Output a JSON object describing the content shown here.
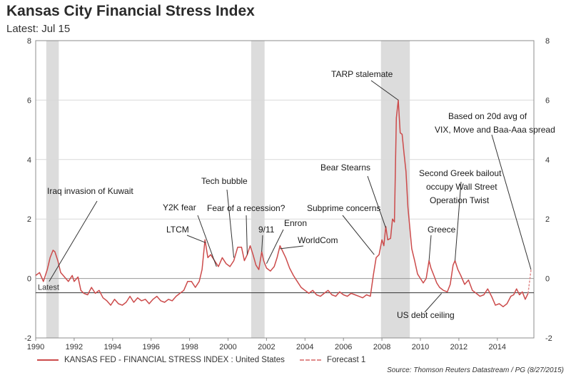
{
  "header": {
    "title": "Kansas City Financial Stress Index",
    "subtitle": "Latest: Jul 15"
  },
  "footer": {
    "source": "Source: Thomson Reuters Datastream / PG (8/27/2015)"
  },
  "chart_data": {
    "type": "line",
    "title": "Kansas City Financial Stress Index",
    "subtitle": "Latest: Jul 15",
    "xlim": [
      1990,
      2015.9
    ],
    "ylim": [
      -2,
      8
    ],
    "x_ticks": [
      "1990",
      "1992",
      "1994",
      "1996",
      "1998",
      "2000",
      "2002",
      "2004",
      "2006",
      "2008",
      "2010",
      "2012",
      "2014"
    ],
    "y_ticks_left": [
      "-2",
      "0",
      "2",
      "4",
      "6",
      "8"
    ],
    "y_ticks_right": [
      "-2",
      "0",
      "2",
      "4",
      "6",
      "8"
    ],
    "grid": "horizontal",
    "latest_line": {
      "label": "Latest",
      "value": -0.48
    },
    "recession_shading": [
      [
        1990.55,
        1991.2
      ],
      [
        2001.2,
        2001.9
      ],
      [
        2007.95,
        2009.45
      ]
    ],
    "series": [
      {
        "name": "KANSAS FED - FINANCIAL STRESS INDEX : United States",
        "color": "#cc4b4b",
        "style": "solid",
        "points": [
          [
            1990.0,
            0.1
          ],
          [
            1990.2,
            0.2
          ],
          [
            1990.4,
            -0.1
          ],
          [
            1990.6,
            0.3
          ],
          [
            1990.75,
            0.7
          ],
          [
            1990.9,
            0.95
          ],
          [
            1991.0,
            0.9
          ],
          [
            1991.15,
            0.6
          ],
          [
            1991.3,
            0.2
          ],
          [
            1991.5,
            0.05
          ],
          [
            1991.7,
            -0.1
          ],
          [
            1991.9,
            0.1
          ],
          [
            1992.0,
            -0.1
          ],
          [
            1992.2,
            0.05
          ],
          [
            1992.35,
            -0.4
          ],
          [
            1992.5,
            -0.5
          ],
          [
            1992.7,
            -0.55
          ],
          [
            1992.9,
            -0.3
          ],
          [
            1993.1,
            -0.5
          ],
          [
            1993.3,
            -0.4
          ],
          [
            1993.5,
            -0.65
          ],
          [
            1993.7,
            -0.75
          ],
          [
            1993.9,
            -0.9
          ],
          [
            1994.1,
            -0.7
          ],
          [
            1994.3,
            -0.85
          ],
          [
            1994.5,
            -0.9
          ],
          [
            1994.7,
            -0.8
          ],
          [
            1994.9,
            -0.6
          ],
          [
            1995.1,
            -0.8
          ],
          [
            1995.3,
            -0.65
          ],
          [
            1995.5,
            -0.75
          ],
          [
            1995.7,
            -0.7
          ],
          [
            1995.9,
            -0.85
          ],
          [
            1996.1,
            -0.7
          ],
          [
            1996.3,
            -0.6
          ],
          [
            1996.5,
            -0.75
          ],
          [
            1996.7,
            -0.8
          ],
          [
            1996.9,
            -0.7
          ],
          [
            1997.1,
            -0.75
          ],
          [
            1997.3,
            -0.6
          ],
          [
            1997.5,
            -0.5
          ],
          [
            1997.7,
            -0.4
          ],
          [
            1997.9,
            -0.1
          ],
          [
            1998.1,
            -0.1
          ],
          [
            1998.3,
            -0.3
          ],
          [
            1998.5,
            -0.1
          ],
          [
            1998.65,
            0.3
          ],
          [
            1998.8,
            1.3
          ],
          [
            1998.95,
            0.7
          ],
          [
            1999.1,
            0.8
          ],
          [
            1999.3,
            0.6
          ],
          [
            1999.5,
            0.4
          ],
          [
            1999.7,
            0.7
          ],
          [
            1999.9,
            0.5
          ],
          [
            2000.1,
            0.4
          ],
          [
            2000.3,
            0.6
          ],
          [
            2000.5,
            1.05
          ],
          [
            2000.7,
            1.05
          ],
          [
            2000.85,
            0.6
          ],
          [
            2001.0,
            0.8
          ],
          [
            2001.15,
            1.1
          ],
          [
            2001.3,
            0.8
          ],
          [
            2001.45,
            0.45
          ],
          [
            2001.6,
            0.3
          ],
          [
            2001.75,
            0.9
          ],
          [
            2001.85,
            0.6
          ],
          [
            2002.0,
            0.35
          ],
          [
            2002.2,
            0.25
          ],
          [
            2002.4,
            0.4
          ],
          [
            2002.55,
            0.7
          ],
          [
            2002.7,
            1.1
          ],
          [
            2002.85,
            0.9
          ],
          [
            2003.0,
            0.7
          ],
          [
            2003.2,
            0.35
          ],
          [
            2003.4,
            0.1
          ],
          [
            2003.6,
            -0.1
          ],
          [
            2003.8,
            -0.3
          ],
          [
            2004.0,
            -0.4
          ],
          [
            2004.2,
            -0.5
          ],
          [
            2004.4,
            -0.4
          ],
          [
            2004.6,
            -0.55
          ],
          [
            2004.8,
            -0.6
          ],
          [
            2005.0,
            -0.5
          ],
          [
            2005.2,
            -0.4
          ],
          [
            2005.4,
            -0.55
          ],
          [
            2005.6,
            -0.6
          ],
          [
            2005.8,
            -0.45
          ],
          [
            2006.0,
            -0.55
          ],
          [
            2006.2,
            -0.6
          ],
          [
            2006.4,
            -0.5
          ],
          [
            2006.6,
            -0.55
          ],
          [
            2006.8,
            -0.6
          ],
          [
            2007.0,
            -0.65
          ],
          [
            2007.2,
            -0.55
          ],
          [
            2007.4,
            -0.6
          ],
          [
            2007.55,
            0.1
          ],
          [
            2007.7,
            0.7
          ],
          [
            2007.85,
            0.8
          ],
          [
            2008.0,
            1.3
          ],
          [
            2008.1,
            1.1
          ],
          [
            2008.2,
            1.75
          ],
          [
            2008.3,
            1.3
          ],
          [
            2008.45,
            1.35
          ],
          [
            2008.55,
            2.0
          ],
          [
            2008.65,
            1.9
          ],
          [
            2008.75,
            5.4
          ],
          [
            2008.85,
            6.0
          ],
          [
            2008.95,
            4.9
          ],
          [
            2009.05,
            4.85
          ],
          [
            2009.15,
            4.2
          ],
          [
            2009.25,
            3.6
          ],
          [
            2009.35,
            2.4
          ],
          [
            2009.45,
            1.7
          ],
          [
            2009.55,
            1.0
          ],
          [
            2009.7,
            0.6
          ],
          [
            2009.85,
            0.15
          ],
          [
            2010.0,
            0.0
          ],
          [
            2010.15,
            -0.15
          ],
          [
            2010.3,
            0.0
          ],
          [
            2010.45,
            0.6
          ],
          [
            2010.55,
            0.35
          ],
          [
            2010.7,
            0.1
          ],
          [
            2010.85,
            -0.15
          ],
          [
            2011.0,
            -0.3
          ],
          [
            2011.2,
            -0.4
          ],
          [
            2011.4,
            -0.45
          ],
          [
            2011.55,
            -0.2
          ],
          [
            2011.7,
            0.45
          ],
          [
            2011.8,
            0.6
          ],
          [
            2011.95,
            0.3
          ],
          [
            2012.1,
            0.1
          ],
          [
            2012.3,
            -0.2
          ],
          [
            2012.5,
            -0.05
          ],
          [
            2012.7,
            -0.4
          ],
          [
            2012.9,
            -0.5
          ],
          [
            2013.1,
            -0.6
          ],
          [
            2013.3,
            -0.55
          ],
          [
            2013.5,
            -0.35
          ],
          [
            2013.7,
            -0.6
          ],
          [
            2013.9,
            -0.9
          ],
          [
            2014.1,
            -0.85
          ],
          [
            2014.3,
            -0.95
          ],
          [
            2014.5,
            -0.85
          ],
          [
            2014.7,
            -0.6
          ],
          [
            2014.85,
            -0.55
          ],
          [
            2015.0,
            -0.35
          ],
          [
            2015.15,
            -0.55
          ],
          [
            2015.3,
            -0.45
          ],
          [
            2015.45,
            -0.7
          ],
          [
            2015.6,
            -0.5
          ]
        ]
      },
      {
        "name": "Forecast 1",
        "color": "#e08a8a",
        "style": "dashed",
        "points": [
          [
            2015.6,
            -0.5
          ],
          [
            2015.75,
            0.3
          ]
        ]
      }
    ],
    "annotations": [
      {
        "text": "Iraq invasion of Kuwait",
        "at": [
          1990.7,
          -0.1
        ]
      },
      {
        "text": "Y2K fear",
        "at": [
          1999.4,
          0.4
        ]
      },
      {
        "text": "LTCM",
        "at": [
          1998.85,
          1.2
        ]
      },
      {
        "text": "Tech bubble",
        "at": [
          2000.3,
          0.7
        ]
      },
      {
        "text": "Fear of a recession?",
        "at": [
          2001.0,
          0.8
        ]
      },
      {
        "text": "9/11",
        "at": [
          2001.75,
          0.9
        ]
      },
      {
        "text": "Enron",
        "at": [
          2002.0,
          0.5
        ]
      },
      {
        "text": "WorldCom",
        "at": [
          2002.7,
          1.0
        ]
      },
      {
        "text": "Subprime concerns",
        "at": [
          2007.6,
          0.8
        ]
      },
      {
        "text": "Bear Stearns",
        "at": [
          2008.2,
          1.7
        ]
      },
      {
        "text": "TARP stalemate",
        "at": [
          2008.85,
          6.0
        ]
      },
      {
        "text": "Greece",
        "at": [
          2010.45,
          0.6
        ]
      },
      {
        "text": "Second Greek bailout",
        "at": [
          2011.8,
          0.6
        ]
      },
      {
        "text": "occupy Wall Street",
        "at": null
      },
      {
        "text": "Operation Twist",
        "at": null
      },
      {
        "text": "US debt ceiling",
        "at": [
          2011.1,
          -0.5
        ]
      },
      {
        "text": "Based on 20d avg of",
        "at": [
          2015.75,
          0.3
        ]
      },
      {
        "text": "VIX, Move and Baa-Aaa spread",
        "at": null
      }
    ]
  },
  "legend": {
    "placement": "bottom",
    "items": [
      {
        "label": "KANSAS FED - FINANCIAL STRESS INDEX : United States"
      },
      {
        "label": "Forecast 1"
      }
    ]
  }
}
